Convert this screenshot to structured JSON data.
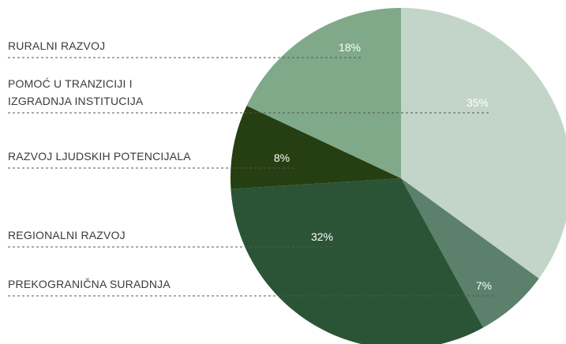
{
  "chart_data": {
    "type": "pie",
    "categories": [
      "POMOĆ U TRANZICIJI I\nIZGRADNJA INSTITUCIJA",
      "PREKOGRANIČNA SURADNJA",
      "REGIONALNI RAZVOJ",
      "RAZVOJ LJUDSKIH POTENCIJALA",
      "RURALNI RAZVOJ"
    ],
    "values": [
      35,
      7,
      32,
      8,
      18
    ],
    "value_labels": [
      "35%",
      "7%",
      "32%",
      "8%",
      "18%"
    ],
    "colors": [
      "#c3d5c9",
      "#5b806b",
      "#2b5436",
      "#263f12",
      "#80a98a"
    ]
  }
}
